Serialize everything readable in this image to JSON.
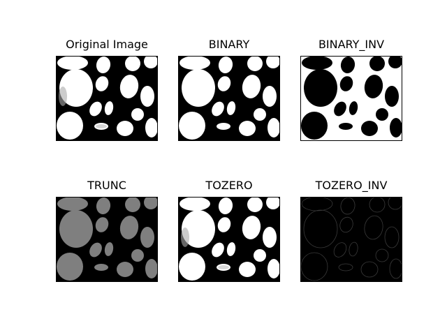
{
  "panels": [
    {
      "title": "Original Image",
      "variant": "original"
    },
    {
      "title": "BINARY",
      "variant": "binary"
    },
    {
      "title": "BINARY_INV",
      "variant": "binary_inv"
    },
    {
      "title": "TRUNC",
      "variant": "trunc"
    },
    {
      "title": "TOZERO",
      "variant": "tozero"
    },
    {
      "title": "TOZERO_INV",
      "variant": "tozero_inv"
    }
  ],
  "colors": {
    "white": "#ffffff",
    "black": "#000000",
    "trunc_gray": "#7f7f7f",
    "edge_gray": "#3a3a3a"
  }
}
